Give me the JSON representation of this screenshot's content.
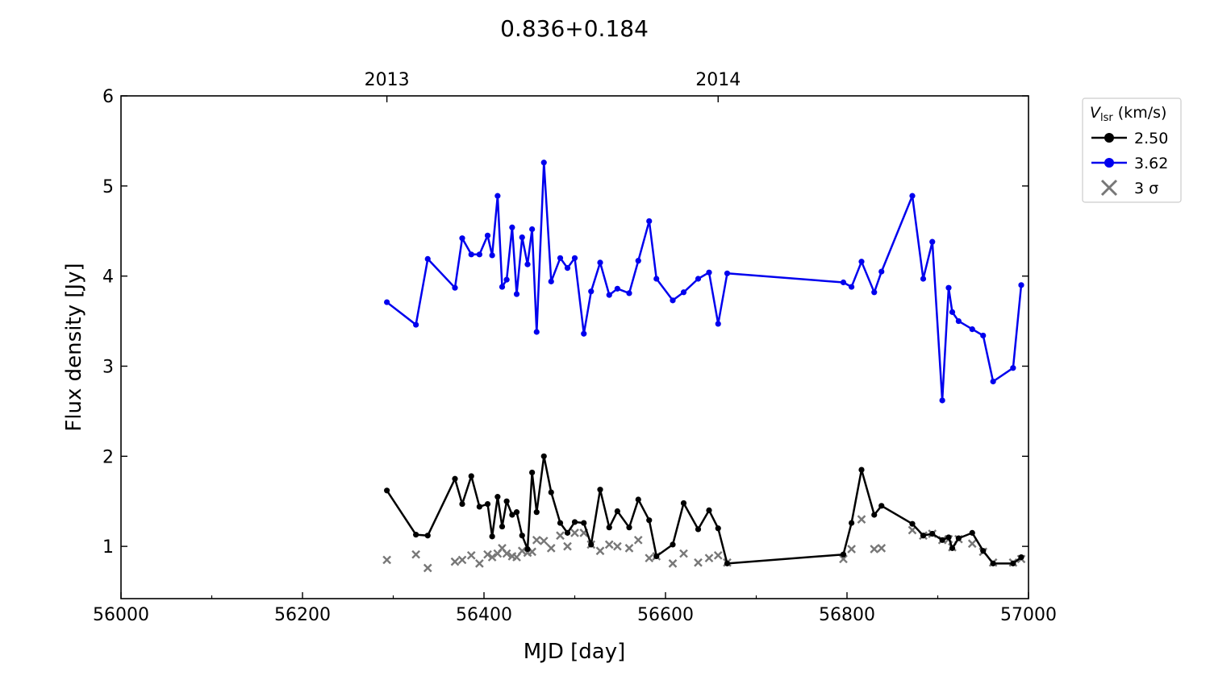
{
  "chart_data": {
    "type": "line",
    "title": "0.836+0.184",
    "xlabel": "MJD [day]",
    "ylabel": "Flux density [Jy]",
    "xlim": [
      56000,
      57000
    ],
    "ylim": [
      0.42,
      6
    ],
    "x_ticks": [
      56000,
      56200,
      56400,
      56600,
      56800,
      57000
    ],
    "y_ticks": [
      1,
      2,
      3,
      4,
      5,
      6
    ],
    "top_axis": {
      "ticks": [
        {
          "label": "2013",
          "x": 56293
        },
        {
          "label": "2014",
          "x": 56658
        }
      ]
    },
    "grid": false,
    "legend": {
      "position": "outside-right-top",
      "title_symbol": "V",
      "title_subscript": "lsr",
      "title_unit": " (km/s)",
      "entries": [
        "2.50",
        "3.62",
        "3 σ"
      ]
    },
    "series": [
      {
        "name": "2.50",
        "color": "#000000",
        "marker": "circle",
        "x": [
          56293,
          56325,
          56338,
          56368,
          56376,
          56386,
          56395,
          56404,
          56409,
          56415,
          56420,
          56425,
          56431,
          56436,
          56442,
          56448,
          56453,
          56458,
          56466,
          56474,
          56484,
          56492,
          56500,
          56510,
          56518,
          56528,
          56538,
          56547,
          56560,
          56570,
          56582,
          56590,
          56608,
          56620,
          56636,
          56648,
          56658,
          56668,
          56796,
          56805,
          56816,
          56830,
          56838,
          56872,
          56884,
          56894,
          56905,
          56912,
          56916,
          56923,
          56938,
          56950,
          56961,
          56983,
          56992
        ],
        "y": [
          1.62,
          1.13,
          1.12,
          1.75,
          1.47,
          1.78,
          1.44,
          1.47,
          1.11,
          1.55,
          1.22,
          1.5,
          1.35,
          1.38,
          1.12,
          0.97,
          1.82,
          1.38,
          2.0,
          1.6,
          1.26,
          1.15,
          1.27,
          1.26,
          1.02,
          1.63,
          1.21,
          1.39,
          1.21,
          1.52,
          1.29,
          0.89,
          1.02,
          1.48,
          1.19,
          1.4,
          1.2,
          0.81,
          0.91,
          1.26,
          1.85,
          1.35,
          1.45,
          1.25,
          1.12,
          1.14,
          1.07,
          1.1,
          0.98,
          1.09,
          1.15,
          0.95,
          0.81,
          0.81,
          0.88
        ]
      },
      {
        "name": "3.62",
        "color": "#0000ee",
        "marker": "circle",
        "x": [
          56293,
          56325,
          56338,
          56368,
          56376,
          56386,
          56395,
          56404,
          56409,
          56415,
          56420,
          56425,
          56431,
          56436,
          56442,
          56448,
          56453,
          56458,
          56466,
          56474,
          56484,
          56492,
          56500,
          56510,
          56518,
          56528,
          56538,
          56547,
          56560,
          56570,
          56582,
          56590,
          56608,
          56620,
          56636,
          56648,
          56658,
          56668,
          56796,
          56805,
          56816,
          56830,
          56838,
          56872,
          56884,
          56894,
          56905,
          56912,
          56916,
          56923,
          56938,
          56950,
          56961,
          56983,
          56992
        ],
        "y": [
          3.71,
          3.46,
          4.19,
          3.87,
          4.42,
          4.24,
          4.24,
          4.45,
          4.23,
          4.89,
          3.88,
          3.96,
          4.54,
          3.8,
          4.43,
          4.13,
          4.52,
          3.38,
          5.26,
          3.94,
          4.2,
          4.09,
          4.2,
          3.36,
          3.83,
          4.15,
          3.79,
          3.86,
          3.81,
          4.17,
          4.61,
          3.97,
          3.73,
          3.82,
          3.97,
          4.04,
          3.47,
          4.03,
          3.93,
          3.88,
          4.16,
          3.82,
          4.05,
          4.89,
          3.97,
          4.38,
          2.62,
          3.87,
          3.6,
          3.5,
          3.41,
          3.34,
          2.83,
          2.98,
          3.9
        ]
      }
    ],
    "sigma3": {
      "name": "3 σ",
      "color": "#777777",
      "marker": "x",
      "x": [
        56293,
        56325,
        56338,
        56368,
        56376,
        56386,
        56395,
        56404,
        56409,
        56415,
        56420,
        56425,
        56431,
        56436,
        56442,
        56448,
        56453,
        56458,
        56466,
        56474,
        56484,
        56492,
        56500,
        56510,
        56518,
        56528,
        56538,
        56547,
        56560,
        56570,
        56582,
        56590,
        56608,
        56620,
        56636,
        56648,
        56658,
        56668,
        56796,
        56805,
        56816,
        56830,
        56838,
        56872,
        56884,
        56894,
        56905,
        56912,
        56916,
        56923,
        56938,
        56950,
        56961,
        56983,
        56992
      ],
      "y": [
        0.85,
        0.91,
        0.76,
        0.83,
        0.85,
        0.9,
        0.81,
        0.91,
        0.88,
        0.92,
        0.98,
        0.92,
        0.89,
        0.88,
        0.95,
        0.93,
        0.94,
        1.07,
        1.06,
        0.98,
        1.12,
        1.0,
        1.15,
        1.15,
        1.02,
        0.95,
        1.02,
        1.0,
        0.98,
        1.07,
        0.87,
        0.89,
        0.81,
        0.92,
        0.82,
        0.87,
        0.9,
        0.82,
        0.86,
        0.97,
        1.3,
        0.97,
        0.98,
        1.18,
        1.12,
        1.14,
        1.07,
        1.08,
        0.99,
        1.08,
        1.03,
        0.94,
        0.82,
        0.82,
        0.86
      ]
    }
  }
}
